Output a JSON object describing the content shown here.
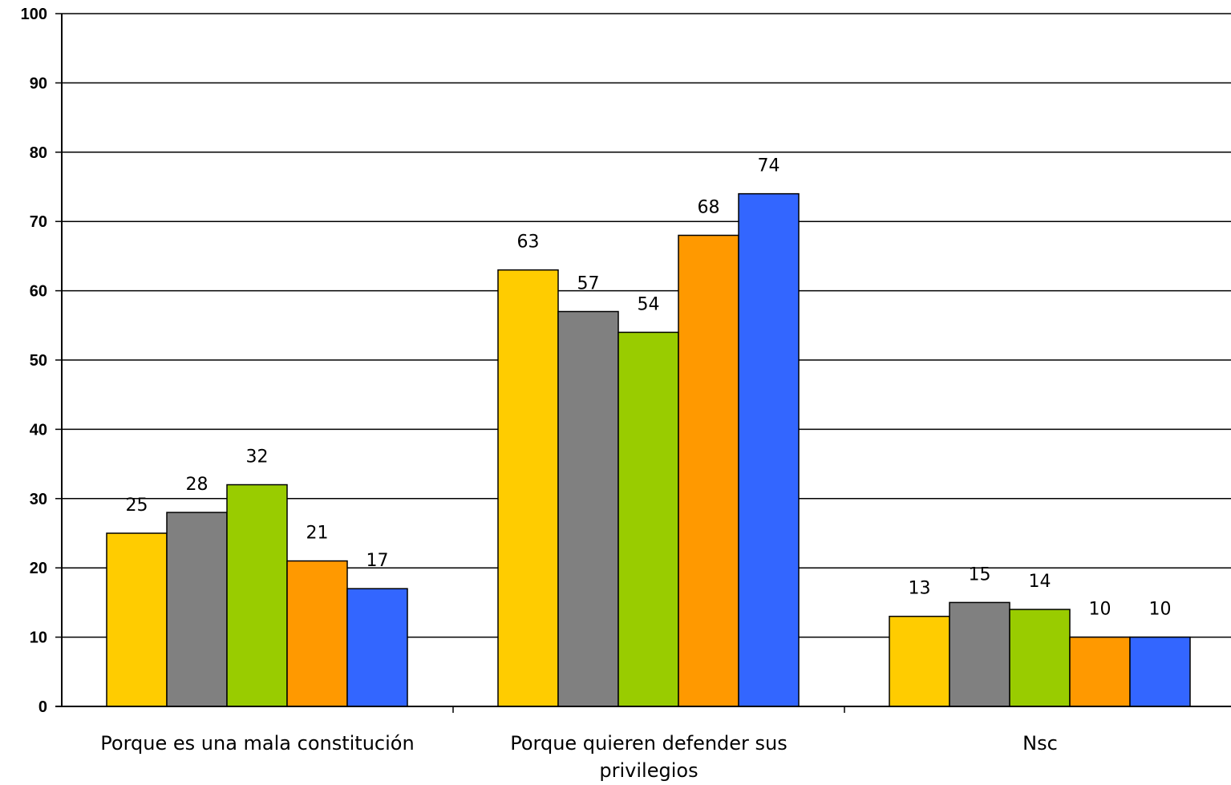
{
  "chart_data": {
    "type": "bar",
    "title": "",
    "xlabel": "",
    "ylabel": "",
    "ylim": [
      0,
      100
    ],
    "yticks": [
      "0",
      "10",
      "20",
      "30",
      "40",
      "50",
      "60",
      "70",
      "80",
      "90",
      "100"
    ],
    "grid": true,
    "legend": "none",
    "categories": [
      [
        "Porque es una mala constitución"
      ],
      [
        "Porque quieren defender sus",
        "privilegios"
      ],
      [
        "Nsc"
      ]
    ],
    "series": [
      {
        "color": "#ffcc00",
        "values": [
          25,
          63,
          13
        ]
      },
      {
        "color": "#808080",
        "values": [
          28,
          57,
          15
        ]
      },
      {
        "color": "#99cc00",
        "values": [
          32,
          54,
          14
        ]
      },
      {
        "color": "#ff9900",
        "values": [
          21,
          68,
          10
        ]
      },
      {
        "color": "#3366ff",
        "values": [
          17,
          74,
          10
        ]
      }
    ]
  }
}
